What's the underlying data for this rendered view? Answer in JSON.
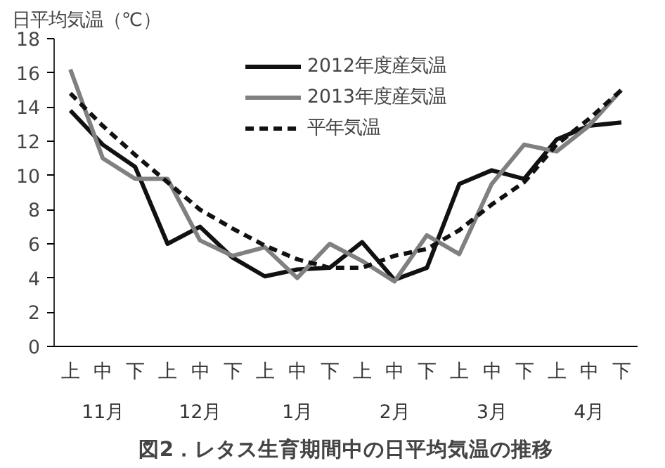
{
  "chart_data": {
    "type": "line",
    "title": "図2．レタス生育期間中の日平均気温の推移",
    "ylabel": "日平均気温（℃）",
    "categories": [
      "上",
      "中",
      "下",
      "上",
      "中",
      "下",
      "上",
      "中",
      "下",
      "上",
      "中",
      "下",
      "上",
      "中",
      "下",
      "上",
      "中",
      "下"
    ],
    "annotations": [
      "11月",
      "12月",
      "1月",
      "2月",
      "3月",
      "4月"
    ],
    "ylim": [
      0,
      18
    ],
    "yticks": [
      0,
      2,
      4,
      6,
      8,
      10,
      12,
      14,
      16,
      18
    ],
    "grid": false,
    "legend": "top",
    "marker": "none",
    "series": [
      {
        "name": "2012年度産気温",
        "color": "#111111",
        "line_style": "solid",
        "values": [
          13.8,
          11.8,
          10.5,
          6.0,
          7.0,
          5.2,
          4.1,
          4.5,
          4.6,
          6.1,
          3.9,
          4.6,
          9.5,
          10.3,
          9.8,
          12.1,
          12.9,
          13.1
        ]
      },
      {
        "name": "2013年度産気温",
        "color": "#808080",
        "line_style": "solid",
        "values": [
          16.2,
          11.0,
          9.8,
          9.8,
          6.2,
          5.3,
          5.8,
          4.0,
          6.0,
          5.0,
          3.8,
          6.5,
          5.4,
          9.5,
          11.8,
          11.4,
          12.9,
          15.0
        ]
      },
      {
        "name": "平年気温",
        "color": "#111111",
        "line_style": "dashed",
        "values": [
          14.8,
          12.9,
          11.2,
          9.6,
          8.0,
          6.9,
          5.9,
          5.1,
          4.6,
          4.6,
          5.3,
          5.7,
          6.8,
          8.3,
          9.6,
          11.8,
          13.3,
          15.0
        ]
      }
    ]
  }
}
